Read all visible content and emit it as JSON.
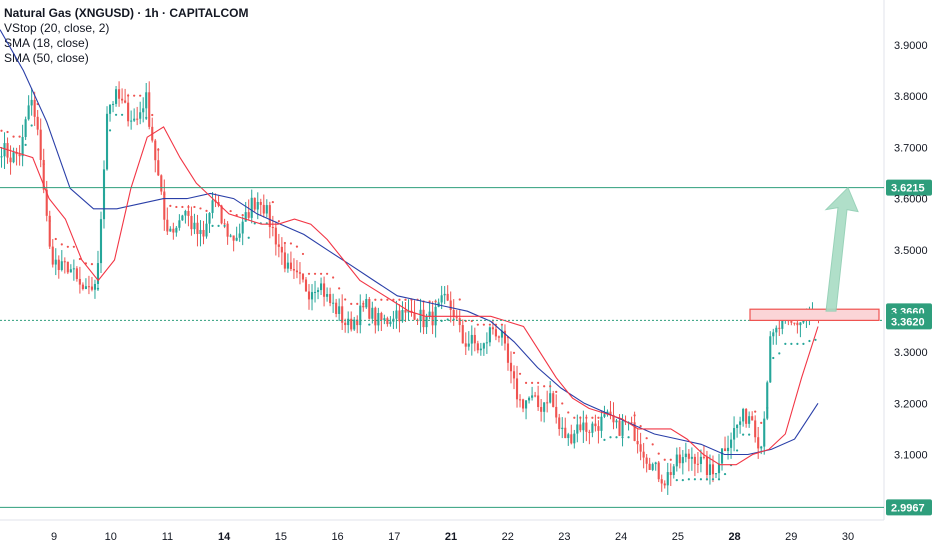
{
  "legend": {
    "title": "Natural Gas (XNGUSD) · 1h · CAPITALCOM",
    "lines": [
      "VStop (20, close, 2)",
      "SMA (18, close)",
      "SMA (50, close)"
    ]
  },
  "colors": {
    "up": "#26a69a",
    "down": "#ef5350",
    "sma18": "#f23645",
    "sma50": "#2a3fa8",
    "level": "#2e9e7c",
    "resistance_box": "#f7a9ad",
    "arrow": "#a8dcc4"
  },
  "chart_data": {
    "type": "candlestick",
    "title": "Natural Gas (XNGUSD) · 1h · CAPITALCOM",
    "y_axis": {
      "position": "right",
      "range": [
        2.972,
        3.988
      ],
      "ticks": [
        "3.9000",
        "3.8000",
        "3.7000",
        "3.6000",
        "3.5000",
        "3.3000",
        "3.2000",
        "3.1000"
      ],
      "tick_values": [
        3.9,
        3.8,
        3.7,
        3.6,
        3.5,
        3.3,
        3.2,
        3.1
      ]
    },
    "x_axis": {
      "labels": [
        {
          "text": "9",
          "bold": false
        },
        {
          "text": "10",
          "bold": false
        },
        {
          "text": "11",
          "bold": false
        },
        {
          "text": "14",
          "bold": true
        },
        {
          "text": "15",
          "bold": false
        },
        {
          "text": "16",
          "bold": false
        },
        {
          "text": "17",
          "bold": false
        },
        {
          "text": "21",
          "bold": true
        },
        {
          "text": "22",
          "bold": false
        },
        {
          "text": "23",
          "bold": false
        },
        {
          "text": "24",
          "bold": false
        },
        {
          "text": "25",
          "bold": false
        },
        {
          "text": "28",
          "bold": true
        },
        {
          "text": "29",
          "bold": false
        },
        {
          "text": "30",
          "bold": false
        }
      ]
    },
    "levels": [
      {
        "value": 3.6215,
        "label": "3.6215",
        "style": "solid"
      },
      {
        "value": 3.366,
        "label": "3.3660",
        "style": "solid"
      },
      {
        "value": 3.362,
        "label": "3.3620",
        "style": "dotted"
      },
      {
        "value": 2.9967,
        "label": "2.9967",
        "style": "solid"
      }
    ],
    "resistance_zone": [
      3.362,
      3.378
    ],
    "projection_arrow": {
      "from": 3.38,
      "to": 3.6215
    },
    "price_path": [
      3.7,
      3.68,
      3.69,
      3.8,
      3.7,
      3.5,
      3.46,
      3.47,
      3.43,
      3.41,
      3.45,
      3.78,
      3.8,
      3.77,
      3.75,
      3.8,
      3.68,
      3.55,
      3.54,
      3.58,
      3.54,
      3.52,
      3.6,
      3.55,
      3.52,
      3.54,
      3.59,
      3.6,
      3.55,
      3.5,
      3.45,
      3.44,
      3.42,
      3.44,
      3.4,
      3.38,
      3.35,
      3.37,
      3.39,
      3.36,
      3.36,
      3.38,
      3.37,
      3.38,
      3.36,
      3.37,
      3.4,
      3.38,
      3.32,
      3.32,
      3.3,
      3.35,
      3.33,
      3.25,
      3.2,
      3.21,
      3.19,
      3.22,
      3.15,
      3.13,
      3.16,
      3.15,
      3.16,
      3.17,
      3.15,
      3.16,
      3.14,
      3.1,
      3.07,
      3.05,
      3.08,
      3.09,
      3.1,
      3.08,
      3.06,
      3.11,
      3.14,
      3.17,
      3.18,
      3.11,
      3.32,
      3.35,
      3.35,
      3.36,
      3.37,
      3.36
    ],
    "series": [
      {
        "name": "SMA (18, close)",
        "values": [
          3.7,
          3.69,
          3.68,
          3.6,
          3.56,
          3.48,
          3.44,
          3.48,
          3.62,
          3.72,
          3.74,
          3.68,
          3.63,
          3.6,
          3.57,
          3.56,
          3.55,
          3.55,
          3.56,
          3.55,
          3.52,
          3.48,
          3.44,
          3.42,
          3.4,
          3.38,
          3.37,
          3.37,
          3.37,
          3.37,
          3.37,
          3.36,
          3.35,
          3.3,
          3.25,
          3.21,
          3.19,
          3.18,
          3.17,
          3.15,
          3.15,
          3.15,
          3.13,
          3.1,
          3.08,
          3.08,
          3.1,
          3.11,
          3.14,
          3.25,
          3.35
        ]
      },
      {
        "name": "SMA (50, close)",
        "values": [
          3.93,
          3.85,
          3.75,
          3.62,
          3.58,
          3.58,
          3.59,
          3.6,
          3.6,
          3.61,
          3.6,
          3.57,
          3.55,
          3.53,
          3.5,
          3.47,
          3.44,
          3.41,
          3.4,
          3.39,
          3.38,
          3.36,
          3.32,
          3.27,
          3.23,
          3.2,
          3.18,
          3.16,
          3.14,
          3.13,
          3.12,
          3.1,
          3.1,
          3.11,
          3.13,
          3.2
        ]
      }
    ]
  }
}
